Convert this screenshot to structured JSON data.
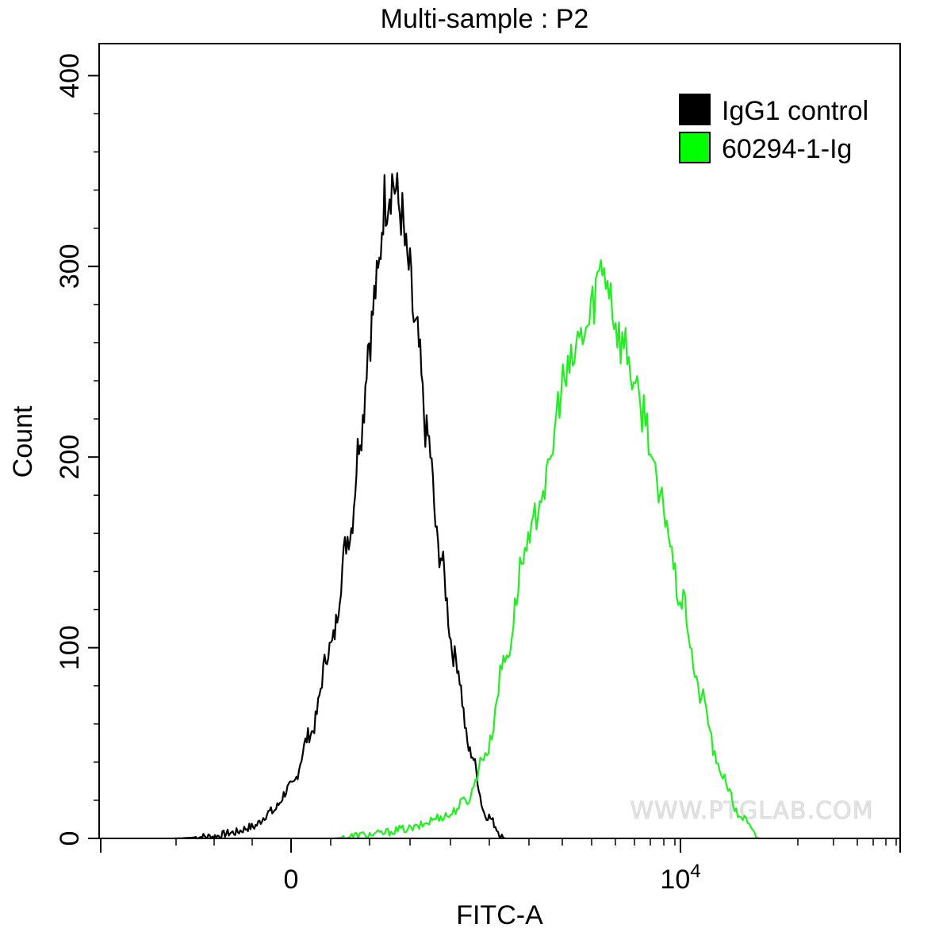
{
  "chart_data": {
    "type": "line",
    "title": "Multi-sample : P2",
    "xlabel": "FITC-A",
    "ylabel": "Count",
    "x_scale": "biexponential",
    "ylim": [
      0,
      400
    ],
    "y_ticks": [
      0,
      100,
      200,
      300,
      400
    ],
    "y_tick_labels": [
      "0",
      "100",
      "200",
      "300",
      "400"
    ],
    "x_ticks": [
      0,
      10000
    ],
    "x_tick_labels": [
      "0",
      "10^4"
    ],
    "legend_position": "top-right",
    "watermark": "WWW.PTGLAB.COM",
    "series": [
      {
        "name": "IgG1 control",
        "color": "#000000",
        "x": [
          -3000,
          -2000,
          -1500,
          -1000,
          -500,
          0,
          500,
          1000,
          1500,
          1800,
          2000,
          2200,
          2400,
          2600,
          2800,
          3000,
          3200,
          3500,
          3800,
          4200,
          4600,
          5000,
          5500
        ],
        "y": [
          0,
          1,
          3,
          6,
          14,
          27,
          55,
          100,
          160,
          215,
          262,
          290,
          335,
          345,
          330,
          300,
          265,
          210,
          150,
          95,
          45,
          12,
          0
        ]
      },
      {
        "name": "60294-1-Ig",
        "color": "#22ee22",
        "x": [
          1000,
          2000,
          3000,
          4000,
          4500,
          5000,
          5500,
          6000,
          6500,
          7000,
          7500,
          8000,
          8500,
          9000,
          9500,
          10000,
          10500,
          11000,
          11500,
          12000
        ],
        "y": [
          0,
          2,
          5,
          12,
          20,
          45,
          95,
          150,
          185,
          240,
          265,
          300,
          260,
          225,
          175,
          125,
          75,
          35,
          12,
          0
        ]
      }
    ]
  }
}
